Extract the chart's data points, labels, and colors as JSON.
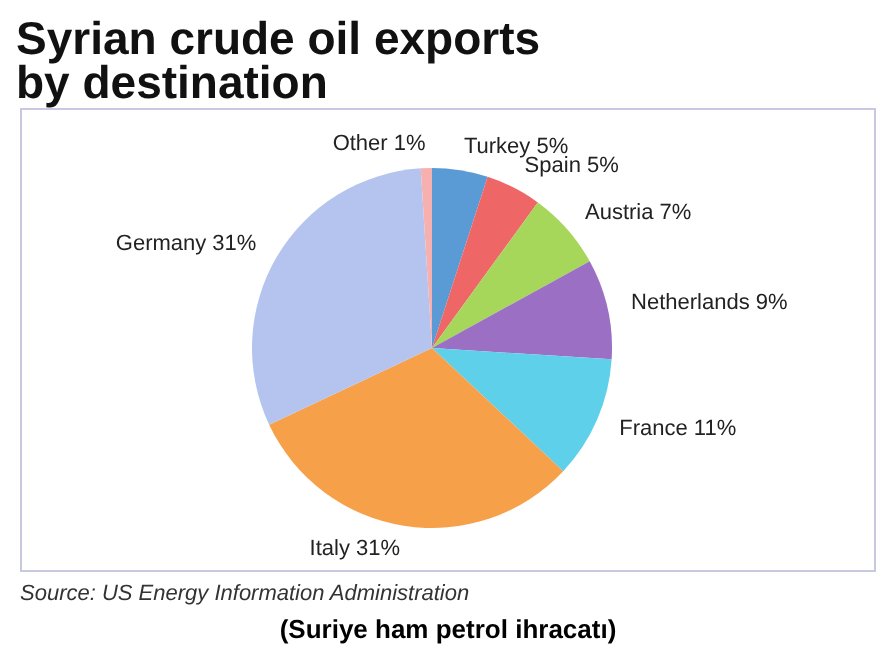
{
  "chart_data": {
    "type": "pie",
    "title": "Syrian crude oil exports\nby destination",
    "categories": [
      "Turkey",
      "Spain",
      "Austria",
      "Netherlands",
      "France",
      "Italy",
      "Germany",
      "Other"
    ],
    "values": [
      5,
      5,
      7,
      9,
      11,
      31,
      31,
      1
    ],
    "value_labels": [
      "5%",
      "5%",
      "7%",
      "9%",
      "11%",
      "31%",
      "31%",
      "1%"
    ],
    "colors": [
      "#5b9bd5",
      "#ee6666",
      "#a6d65a",
      "#9a6fc4",
      "#5fd0ea",
      "#f7a04a",
      "#b4c4ee",
      "#f7b0b0"
    ],
    "annotations": [
      "Source: US Energy Information Administration",
      "(Suriye ham petrol ihracatı)"
    ]
  }
}
